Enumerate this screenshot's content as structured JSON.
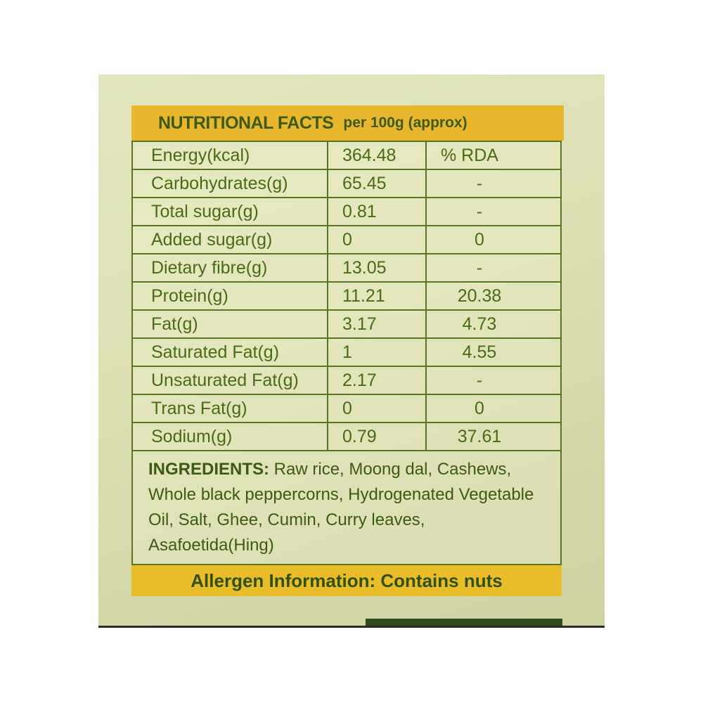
{
  "header": {
    "title": "NUTRITIONAL FACTS",
    "subtitle": "per 100g (approx)"
  },
  "table": {
    "rows": [
      {
        "nutrient": "Energy(kcal)",
        "value": "364.48",
        "rda": "% RDA"
      },
      {
        "nutrient": "Carbohydrates(g)",
        "value": "65.45",
        "rda": "-"
      },
      {
        "nutrient": "Total sugar(g)",
        "value": "0.81",
        "rda": "-"
      },
      {
        "nutrient": "Added sugar(g)",
        "value": "0",
        "rda": "0"
      },
      {
        "nutrient": "Dietary fibre(g)",
        "value": "13.05",
        "rda": "-"
      },
      {
        "nutrient": "Protein(g)",
        "value": "11.21",
        "rda": "20.38"
      },
      {
        "nutrient": "Fat(g)",
        "value": "3.17",
        "rda": "4.73"
      },
      {
        "nutrient": "Saturated Fat(g)",
        "value": "1",
        "rda": "4.55"
      },
      {
        "nutrient": "Unsaturated Fat(g)",
        "value": "2.17",
        "rda": "-"
      },
      {
        "nutrient": "Trans Fat(g)",
        "value": "0",
        "rda": "0"
      },
      {
        "nutrient": "Sodium(g)",
        "value": "0.79",
        "rda": "37.61"
      }
    ]
  },
  "ingredients": {
    "label": "INGREDIENTS:",
    "text": " Raw rice, Moong dal, Cashews, Whole black peppercorns, Hydrogenated Vegetable Oil, Salt, Ghee, Cumin, Curry leaves, Asafoetida(Hing)"
  },
  "allergen": {
    "text": "Allergen Information: Contains nuts"
  },
  "colors": {
    "header_yellow": "#e9b72e",
    "text_green": "#3d5a12",
    "package": "#e0e3b8"
  }
}
